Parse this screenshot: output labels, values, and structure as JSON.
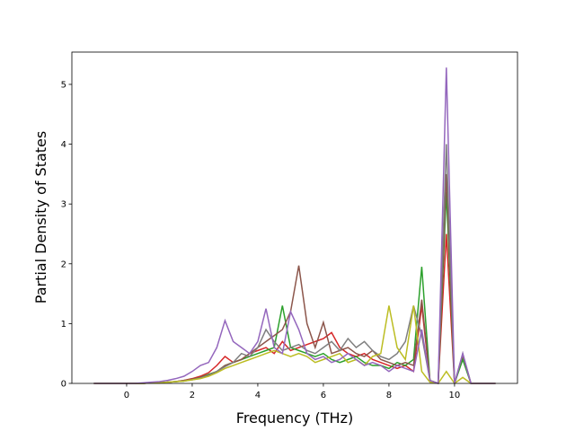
{
  "chart_data": {
    "type": "line",
    "xlabel": "Frequency (THz)",
    "ylabel": "Partial Density of States",
    "x": [
      -1,
      -0.75,
      -0.5,
      -0.25,
      0,
      0.25,
      0.5,
      0.75,
      1,
      1.25,
      1.5,
      1.75,
      2,
      2.25,
      2.5,
      2.75,
      3,
      3.25,
      3.5,
      3.75,
      4,
      4.25,
      4.5,
      4.75,
      5,
      5.25,
      5.5,
      5.75,
      6,
      6.25,
      6.5,
      6.75,
      7,
      7.25,
      7.5,
      7.75,
      8,
      8.25,
      8.5,
      8.75,
      9,
      9.25,
      9.5,
      9.75,
      10,
      10.25,
      10.5,
      10.75,
      11,
      11.25
    ],
    "series": [
      {
        "name": "red",
        "color": "#d62728",
        "values": [
          0,
          0,
          0,
          0,
          0,
          0,
          0,
          0.01,
          0.01,
          0.02,
          0.03,
          0.05,
          0.08,
          0.12,
          0.18,
          0.3,
          0.45,
          0.35,
          0.4,
          0.5,
          0.55,
          0.6,
          0.5,
          0.7,
          0.55,
          0.6,
          0.65,
          0.7,
          0.75,
          0.85,
          0.6,
          0.5,
          0.45,
          0.5,
          0.4,
          0.35,
          0.3,
          0.25,
          0.3,
          0.2,
          1.3,
          0.05,
          0,
          2.5,
          0,
          0.45,
          0,
          0,
          0,
          0
        ]
      },
      {
        "name": "green",
        "color": "#2ca02c",
        "values": [
          0,
          0,
          0,
          0,
          0,
          0,
          0,
          0.01,
          0.01,
          0.02,
          0.03,
          0.04,
          0.07,
          0.1,
          0.15,
          0.2,
          0.3,
          0.35,
          0.4,
          0.45,
          0.5,
          0.55,
          0.6,
          1.3,
          0.6,
          0.55,
          0.5,
          0.45,
          0.5,
          0.4,
          0.35,
          0.4,
          0.45,
          0.35,
          0.3,
          0.3,
          0.25,
          0.35,
          0.3,
          0.4,
          1.95,
          0.05,
          0,
          3.2,
          0,
          0.4,
          0,
          0,
          0,
          0
        ]
      },
      {
        "name": "brown",
        "color": "#8c564b",
        "values": [
          0,
          0,
          0,
          0,
          0,
          0,
          0,
          0.01,
          0.01,
          0.02,
          0.03,
          0.05,
          0.07,
          0.1,
          0.14,
          0.2,
          0.3,
          0.35,
          0.4,
          0.5,
          0.6,
          0.7,
          0.8,
          0.9,
          1.2,
          1.97,
          1.0,
          0.6,
          1.02,
          0.5,
          0.55,
          0.6,
          0.5,
          0.45,
          0.55,
          0.4,
          0.35,
          0.3,
          0.35,
          0.3,
          1.4,
          0.05,
          0,
          3.5,
          0,
          0.48,
          0,
          0,
          0,
          0
        ]
      },
      {
        "name": "gray",
        "color": "#7f7f7f",
        "values": [
          0,
          0,
          0,
          0,
          0,
          0,
          0,
          0.01,
          0.01,
          0.02,
          0.03,
          0.04,
          0.06,
          0.09,
          0.13,
          0.2,
          0.28,
          0.35,
          0.5,
          0.45,
          0.6,
          0.9,
          0.7,
          0.55,
          0.6,
          0.65,
          0.55,
          0.5,
          0.6,
          0.7,
          0.55,
          0.75,
          0.6,
          0.7,
          0.55,
          0.45,
          0.4,
          0.5,
          0.7,
          1.3,
          0.8,
          0.05,
          0,
          4.0,
          0,
          0.5,
          0,
          0,
          0,
          0
        ]
      },
      {
        "name": "olive",
        "color": "#bcbd22",
        "values": [
          0,
          0,
          0,
          0,
          0,
          0,
          0,
          0.01,
          0.01,
          0.02,
          0.03,
          0.04,
          0.06,
          0.08,
          0.12,
          0.18,
          0.25,
          0.3,
          0.35,
          0.4,
          0.45,
          0.5,
          0.55,
          0.5,
          0.45,
          0.5,
          0.45,
          0.35,
          0.4,
          0.45,
          0.5,
          0.35,
          0.4,
          0.3,
          0.45,
          0.5,
          1.3,
          0.6,
          0.4,
          1.3,
          0.2,
          0.02,
          0,
          0.2,
          0,
          0.1,
          0,
          0,
          0,
          0
        ]
      },
      {
        "name": "purple",
        "color": "#9467bd",
        "values": [
          0,
          0,
          0,
          0,
          0,
          0,
          0.01,
          0.02,
          0.03,
          0.05,
          0.08,
          0.12,
          0.2,
          0.3,
          0.35,
          0.6,
          1.05,
          0.7,
          0.6,
          0.5,
          0.7,
          1.25,
          0.6,
          0.5,
          1.2,
          0.9,
          0.5,
          0.4,
          0.45,
          0.35,
          0.4,
          0.5,
          0.4,
          0.3,
          0.35,
          0.3,
          0.2,
          0.3,
          0.25,
          0.2,
          0.9,
          0.05,
          0,
          5.28,
          0,
          0.5,
          0,
          0,
          0,
          0
        ]
      }
    ],
    "xlim": [
      -1.67,
      11.92
    ],
    "ylim": [
      0,
      5.54
    ],
    "xticks": [
      0,
      2,
      4,
      6,
      8,
      10
    ],
    "yticks": [
      0,
      1,
      2,
      3,
      4,
      5
    ]
  }
}
